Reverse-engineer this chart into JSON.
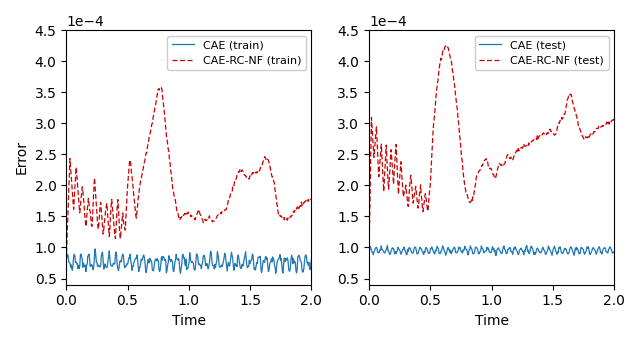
{
  "xlabel": "Time",
  "ylabel": "Error",
  "xlim": [
    0.0,
    2.0
  ],
  "ylim": [
    0.4,
    4.5
  ],
  "legend_left": [
    "CAE (train)",
    "CAE-RC-NF (train)"
  ],
  "legend_right": [
    "CAE (test)",
    "CAE-RC-NF (test)"
  ],
  "cae_color": "#1f77b4",
  "rcnf_color": "#cc0000",
  "figsize": [
    6.4,
    3.43
  ],
  "dpi": 100
}
